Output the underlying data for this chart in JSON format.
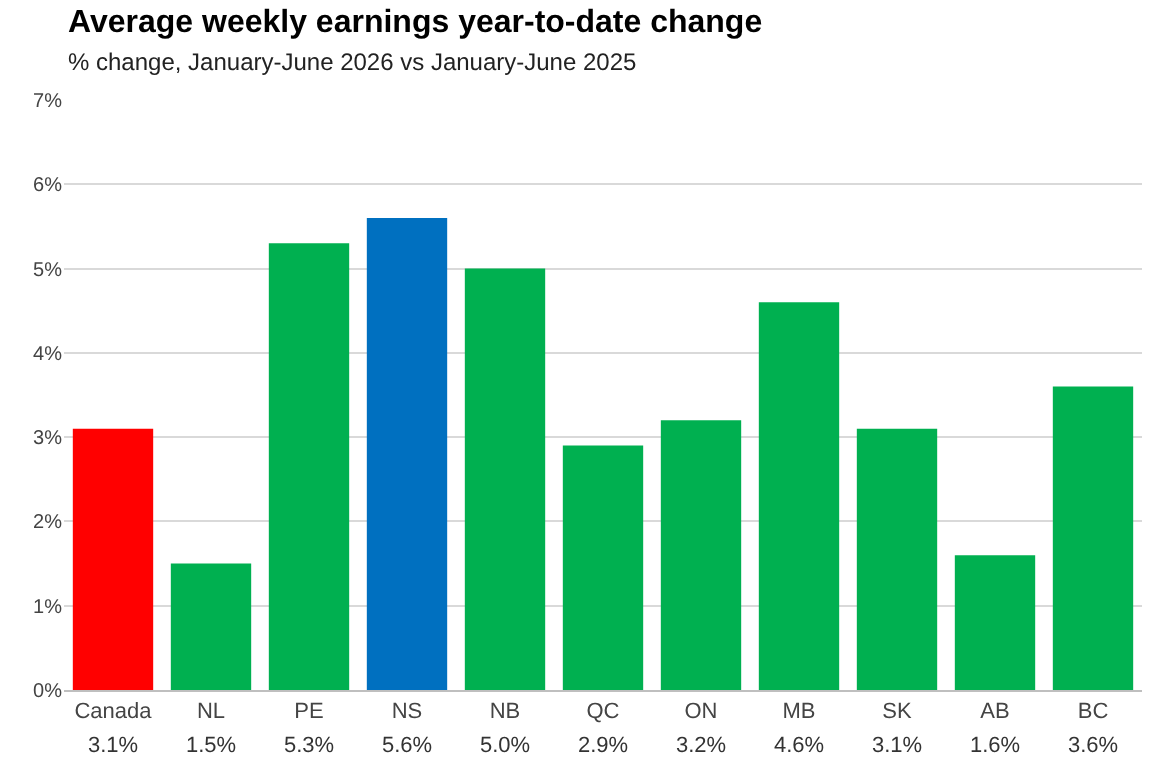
{
  "chart_data": {
    "type": "bar",
    "title": "Average weekly earnings year-to-date change",
    "subtitle": "% change, January-June 2026 vs January-June 2025",
    "categories": [
      "Canada",
      "NL",
      "PE",
      "NS",
      "NB",
      "QC",
      "ON",
      "MB",
      "SK",
      "AB",
      "BC"
    ],
    "values": [
      3.1,
      1.5,
      5.3,
      5.6,
      5.0,
      2.9,
      3.2,
      4.6,
      3.1,
      1.6,
      3.6
    ],
    "colors": [
      "#ff0000",
      "#00b050",
      "#00b050",
      "#0070c0",
      "#00b050",
      "#00b050",
      "#00b050",
      "#00b050",
      "#00b050",
      "#00b050",
      "#00b050"
    ],
    "value_labels": [
      "3.1%",
      "1.5%",
      "5.3%",
      "5.6%",
      "5.0%",
      "2.9%",
      "3.2%",
      "4.6%",
      "3.1%",
      "1.6%",
      "3.6%"
    ],
    "ylim": [
      0,
      7
    ],
    "yticks": [
      {
        "value": 0,
        "label": "0%"
      },
      {
        "value": 1,
        "label": "1%"
      },
      {
        "value": 2,
        "label": "2%"
      },
      {
        "value": 3,
        "label": "3%"
      },
      {
        "value": 4,
        "label": "4%"
      },
      {
        "value": 5,
        "label": "5%"
      },
      {
        "value": 6,
        "label": "6%"
      },
      {
        "value": 7,
        "label": "7%"
      }
    ],
    "grid": "y"
  }
}
